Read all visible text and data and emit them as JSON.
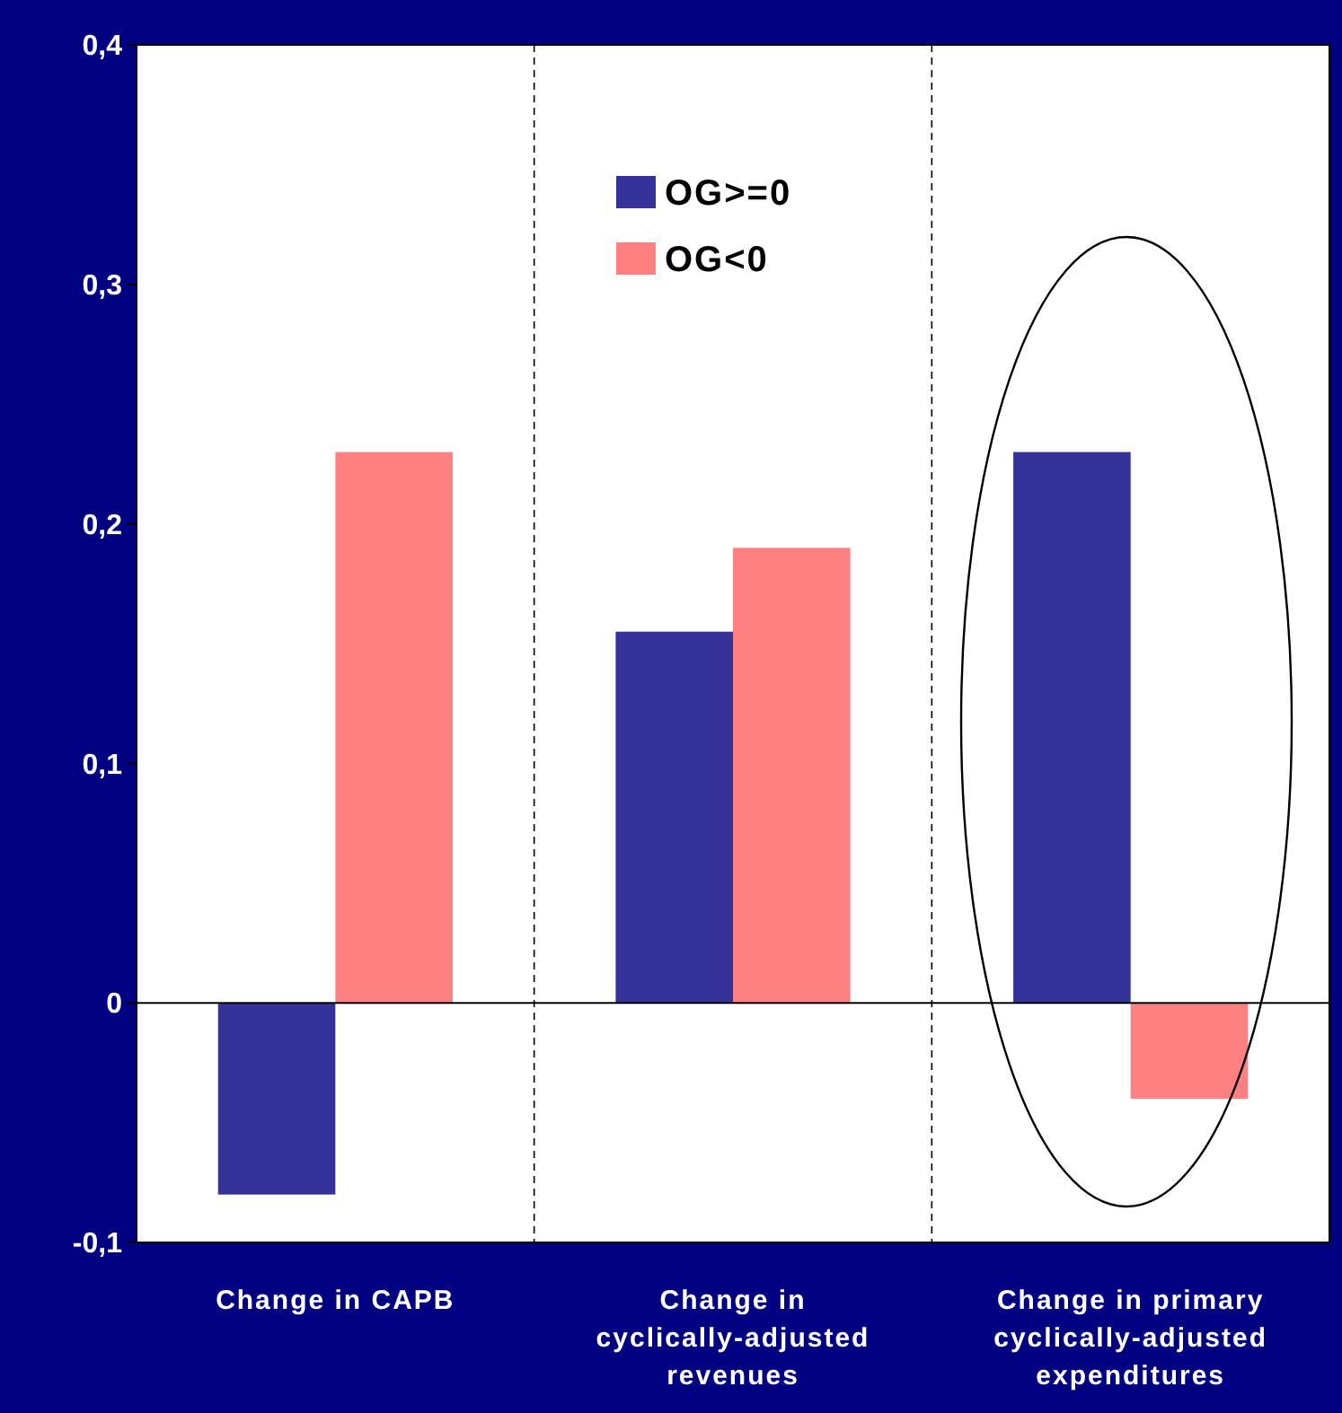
{
  "chart_data": {
    "type": "bar",
    "categories": [
      "Change in CAPB",
      "Change in cyclically-adjusted revenues",
      "Change in primary cyclically-adjusted expenditures"
    ],
    "series": [
      {
        "name": "OG>=0",
        "color": "#333399",
        "values": [
          -0.08,
          0.155,
          0.23
        ]
      },
      {
        "name": "OG<0",
        "color": "#ff8080",
        "values": [
          0.23,
          0.19,
          -0.04
        ]
      }
    ],
    "ylim": [
      -0.1,
      0.4
    ],
    "yticks": [
      {
        "value": -0.1,
        "label": "-0,1"
      },
      0,
      {
        "value": 0.1,
        "label": "0,1"
      },
      {
        "value": 0.2,
        "label": "0,2"
      },
      {
        "value": 0.3,
        "label": "0,3"
      },
      {
        "value": 0.4,
        "label": "0,4"
      }
    ],
    "grid": "x",
    "legend": "top"
  }
}
